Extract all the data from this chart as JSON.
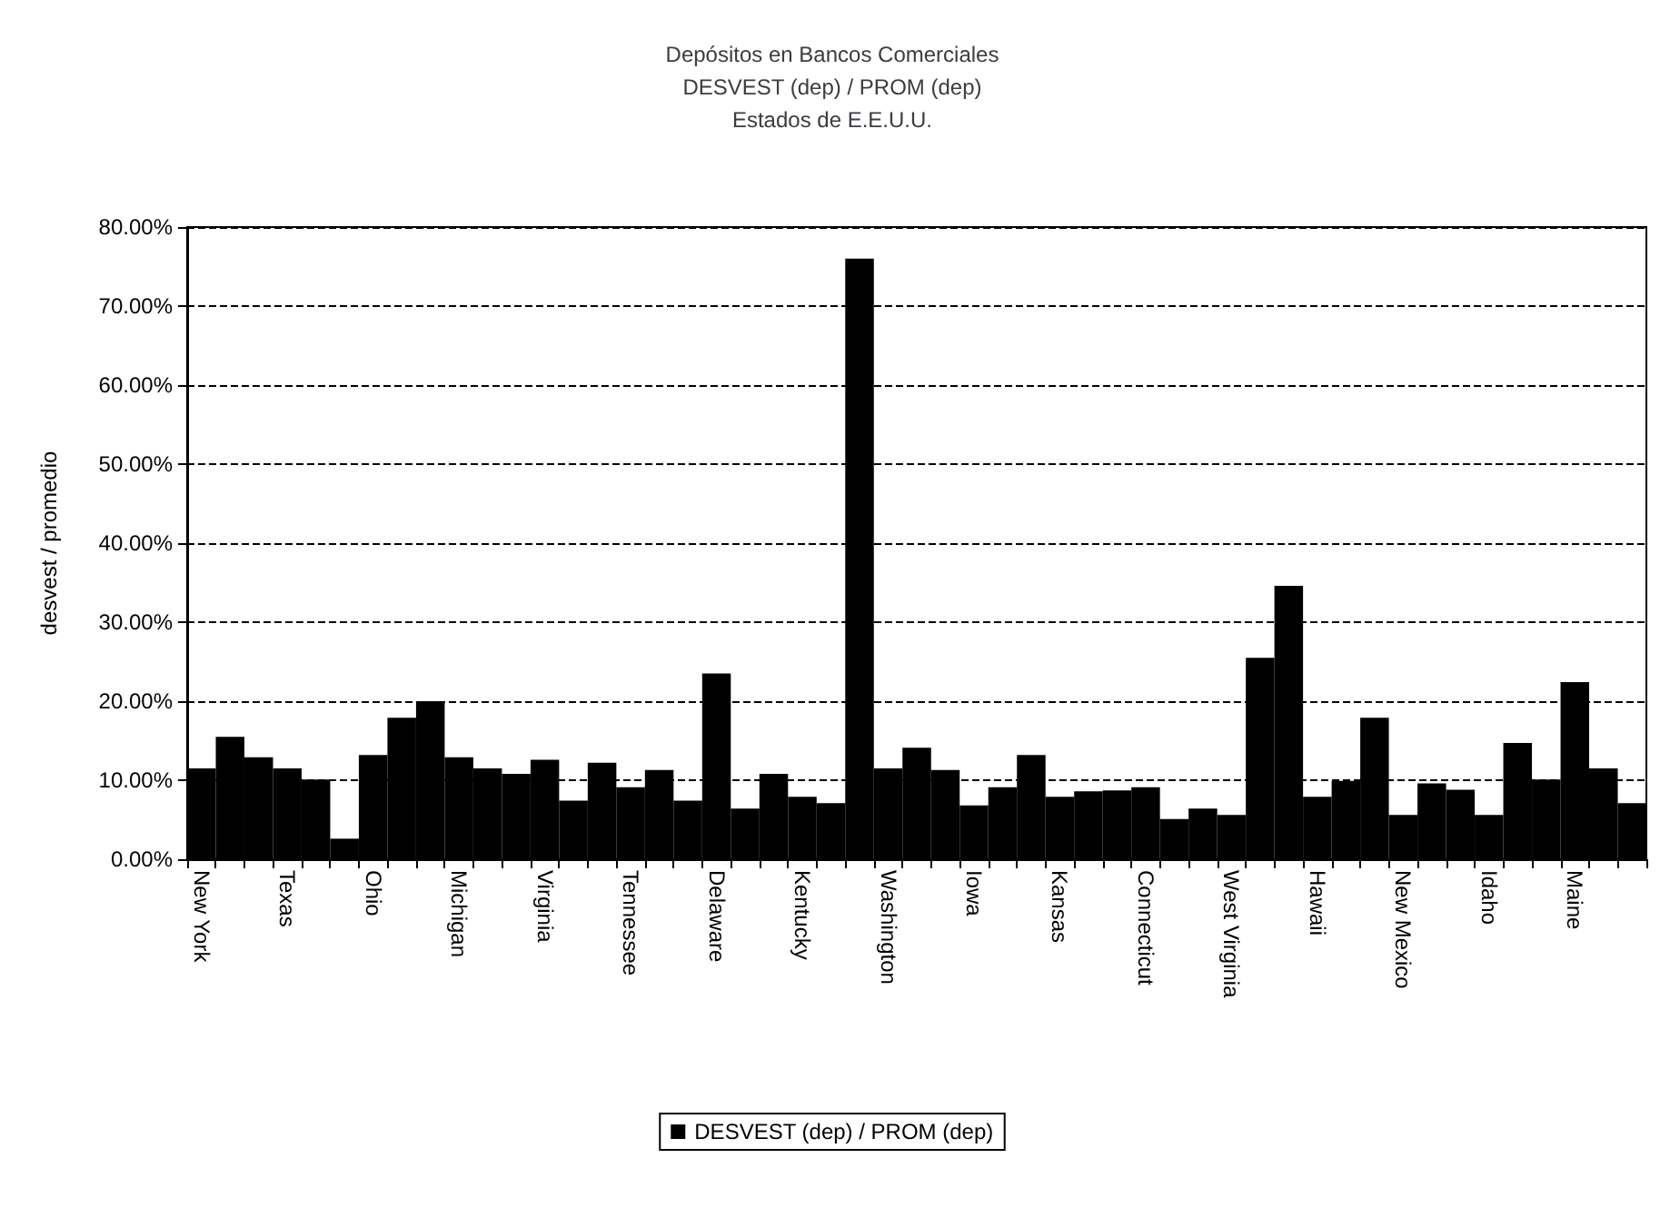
{
  "chart_data": {
    "type": "bar",
    "title": "Depósitos en Bancos Comerciales\nDESVEST (dep) / PROM (dep)\nEstados de E.E.U.U.",
    "ylabel": "desvest / promedio",
    "categories": [
      "New York",
      null,
      null,
      "Texas",
      null,
      null,
      "Ohio",
      null,
      null,
      "Michigan",
      null,
      null,
      "Virginia",
      null,
      null,
      "Tennessee",
      null,
      null,
      "Delaware",
      null,
      null,
      "Kentucky",
      null,
      null,
      "Washington",
      null,
      null,
      "Iowa",
      null,
      null,
      "Kansas",
      null,
      null,
      "Connecticut",
      null,
      null,
      "West Virginia",
      null,
      null,
      "Hawaii",
      null,
      null,
      "New Mexico",
      null,
      null,
      "Idaho",
      null,
      null,
      "Maine",
      null,
      null
    ],
    "series": [
      {
        "name": "DESVEST (dep) / PROM (dep)",
        "color": "#000000",
        "values": [
          11.5,
          15.5,
          12.9,
          11.5,
          10.1,
          2.6,
          13.2,
          17.9,
          20,
          12.9,
          11.5,
          10.8,
          12.6,
          7.4,
          12.2,
          9.1,
          11.3,
          7.4,
          23.5,
          6.4,
          10.8,
          7.9,
          7.1,
          76,
          11.5,
          14.1,
          11.3,
          6.8,
          9.1,
          13.2,
          7.9,
          8.6,
          8.7,
          9.1,
          5.1,
          6.4,
          5.6,
          25.5,
          34.6,
          7.9,
          9.9,
          17.9,
          5.6,
          9.6,
          8.8,
          5.6,
          14.7,
          10.1,
          22.4,
          11.5,
          7.1
        ]
      }
    ],
    "ylim": [
      0,
      80
    ],
    "yticks": [
      {
        "value": 0,
        "label": "0.00%"
      },
      {
        "value": 10,
        "label": "10.00%"
      },
      {
        "value": 20,
        "label": "20.00%"
      },
      {
        "value": 30,
        "label": "30.00%"
      },
      {
        "value": 40,
        "label": "40.00%"
      },
      {
        "value": 50,
        "label": "50.00%"
      },
      {
        "value": 60,
        "label": "60.00%"
      },
      {
        "value": 70,
        "label": "70.00%"
      },
      {
        "value": 80,
        "label": "80.00%"
      }
    ],
    "grid": "y",
    "legend": "bottom"
  }
}
